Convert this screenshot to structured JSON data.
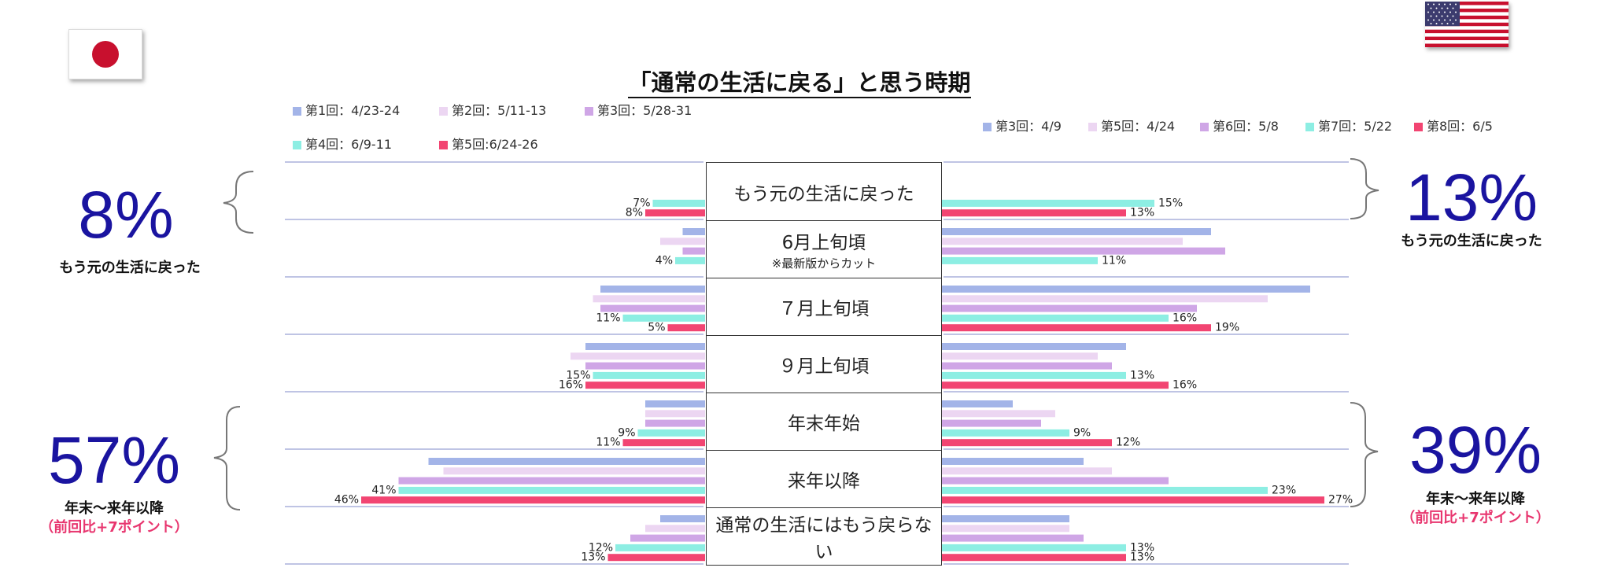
{
  "title": "「通常の生活に戻る」と思う時期",
  "colors": {
    "s1": "#a3b4e8",
    "s2": "#ecd6f2",
    "s3": "#cfa6e6",
    "s4": "#8deee3",
    "s5": "#f24572",
    "divider": "#aab0dc",
    "big_text": "#1a14a0",
    "accent_red": "#e8366f"
  },
  "japan": {
    "flag_icon": "japan-flag-icon",
    "legend": [
      "第1回：4/23-24",
      "第2回：5/11-13",
      "第3回：5/28-31",
      "第4回：6/9-11",
      "第5回:6/24-26"
    ],
    "big_left_top": "8%",
    "caption_left_top": "もう元の生活に戻った",
    "big_left_bottom": "57%",
    "caption_left_bottom": "年末～来年以降",
    "caption_left_bottom_sub": "（前回比+7ポイント）"
  },
  "usa": {
    "flag_icon": "usa-flag-icon",
    "legend": [
      "第3回：4/9",
      "第5回：4/24",
      "第6回：5/8",
      "第7回：5/22",
      "第8回：6/5"
    ],
    "big_right_top": "13%",
    "caption_right_top": "もう元の生活に戻った",
    "big_right_bottom": "39%",
    "caption_right_bottom": "年末～来年以降",
    "caption_right_bottom_sub": "（前回比+7ポイント）"
  },
  "categories": [
    {
      "label": "もう元の生活に戻った",
      "note": ""
    },
    {
      "label": "6月上旬頃",
      "note": "※最新版からカット"
    },
    {
      "label": "７月上旬頃",
      "note": ""
    },
    {
      "label": "９月上旬頃",
      "note": ""
    },
    {
      "label": "年末年始",
      "note": ""
    },
    {
      "label": "来年以降",
      "note": ""
    },
    {
      "label": "通常の生活にはもう戻らない",
      "note": ""
    }
  ],
  "chart_data": [
    {
      "type": "bar",
      "orientation": "horizontal",
      "direction": "right-to-left",
      "country": "Japan",
      "categories": [
        "もう元の生活に戻った",
        "6月上旬頃",
        "７月上旬頃",
        "９月上旬頃",
        "年末年始",
        "来年以降",
        "通常の生活にはもう戻らない"
      ],
      "series": [
        {
          "name": "第1回：4/23-24",
          "values": [
            null,
            3,
            14,
            16,
            8,
            37,
            6
          ]
        },
        {
          "name": "第2回：5/11-13",
          "values": [
            null,
            6,
            15,
            18,
            8,
            35,
            8
          ]
        },
        {
          "name": "第3回：5/28-31",
          "values": [
            null,
            3,
            14,
            16,
            8,
            41,
            10
          ]
        },
        {
          "name": "第4回：6/9-11",
          "values": [
            7,
            4,
            11,
            15,
            9,
            41,
            12
          ]
        },
        {
          "name": "第5回:6/24-26",
          "values": [
            8,
            null,
            5,
            16,
            11,
            46,
            13
          ]
        }
      ],
      "data_labels": [
        {
          "category": "もう元の生活に戻った",
          "series": "第4回：6/9-11",
          "text": "7%"
        },
        {
          "category": "もう元の生活に戻った",
          "series": "第5回:6/24-26",
          "text": "8%"
        },
        {
          "category": "6月上旬頃",
          "series": "第4回：6/9-11",
          "text": "4%"
        },
        {
          "category": "７月上旬頃",
          "series": "第4回：6/9-11",
          "text": "11%"
        },
        {
          "category": "７月上旬頃",
          "series": "第5回:6/24-26",
          "text": "5%"
        },
        {
          "category": "９月上旬頃",
          "series": "第4回：6/9-11",
          "text": "15%"
        },
        {
          "category": "９月上旬頃",
          "series": "第5回:6/24-26",
          "text": "16%"
        },
        {
          "category": "年末年始",
          "series": "第4回：6/9-11",
          "text": "9%"
        },
        {
          "category": "年末年始",
          "series": "第5回:6/24-26",
          "text": "11%"
        },
        {
          "category": "来年以降",
          "series": "第4回：6/9-11",
          "text": "41%"
        },
        {
          "category": "来年以降",
          "series": "第5回:6/24-26",
          "text": "46%"
        },
        {
          "category": "通常の生活にはもう戻らない",
          "series": "第4回：6/9-11",
          "text": "12%"
        },
        {
          "category": "通常の生活にはもう戻らない",
          "series": "第5回:6/24-26",
          "text": "13%"
        }
      ],
      "xlim": [
        0,
        50
      ],
      "grid": false,
      "legend": "top"
    },
    {
      "type": "bar",
      "orientation": "horizontal",
      "direction": "left-to-right",
      "country": "USA",
      "categories": [
        "もう元の生活に戻った",
        "6月上旬頃",
        "７月上旬頃",
        "９月上旬頃",
        "年末年始",
        "来年以降",
        "通常の生活にはもう戻らない"
      ],
      "series": [
        {
          "name": "第3回：4/9",
          "values": [
            null,
            19,
            26,
            13,
            5,
            10,
            9
          ]
        },
        {
          "name": "第5回：4/24",
          "values": [
            null,
            17,
            23,
            11,
            8,
            12,
            9
          ]
        },
        {
          "name": "第6回：5/8",
          "values": [
            null,
            20,
            18,
            12,
            7,
            16,
            10
          ]
        },
        {
          "name": "第7回：5/22",
          "values": [
            15,
            11,
            16,
            13,
            9,
            23,
            13
          ]
        },
        {
          "name": "第8回：6/5",
          "values": [
            13,
            null,
            19,
            16,
            12,
            27,
            13
          ]
        }
      ],
      "data_labels": [
        {
          "category": "もう元の生活に戻った",
          "series": "第7回：5/22",
          "text": "15%"
        },
        {
          "category": "もう元の生活に戻った",
          "series": "第8回：6/5",
          "text": "13%"
        },
        {
          "category": "6月上旬頃",
          "series": "第7回：5/22",
          "text": "11%"
        },
        {
          "category": "７月上旬頃",
          "series": "第7回：5/22",
          "text": "16%"
        },
        {
          "category": "７月上旬頃",
          "series": "第8回：6/5",
          "text": "19%"
        },
        {
          "category": "９月上旬頃",
          "series": "第7回：5/22",
          "text": "13%"
        },
        {
          "category": "９月上旬頃",
          "series": "第8回：6/5",
          "text": "16%"
        },
        {
          "category": "年末年始",
          "series": "第7回：5/22",
          "text": "9%"
        },
        {
          "category": "年末年始",
          "series": "第8回：6/5",
          "text": "12%"
        },
        {
          "category": "来年以降",
          "series": "第7回：5/22",
          "text": "23%"
        },
        {
          "category": "来年以降",
          "series": "第8回：6/5",
          "text": "27%"
        },
        {
          "category": "通常の生活にはもう戻らない",
          "series": "第7回：5/22",
          "text": "13%"
        },
        {
          "category": "通常の生活にはもう戻らない",
          "series": "第8回：6/5",
          "text": "13%"
        }
      ],
      "xlim": [
        0,
        30
      ],
      "grid": false,
      "legend": "top"
    }
  ]
}
